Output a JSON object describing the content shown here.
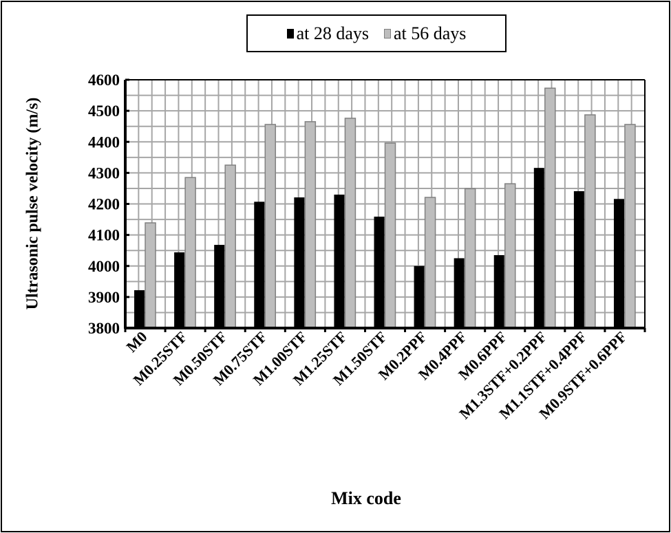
{
  "chart_data": {
    "type": "bar",
    "title": "",
    "xlabel": "Mix code",
    "ylabel": "Ultrasonic pulse velocity (m/s)",
    "ylim": [
      3800,
      4600
    ],
    "yticks": [
      3800,
      3900,
      4000,
      4100,
      4200,
      4300,
      4400,
      4500,
      4600
    ],
    "grid": true,
    "legend_position": "top",
    "categories": [
      "M0",
      "M0.25STF",
      "M0.50STF",
      "M0.75STF",
      "M1.00STF",
      "M1.25STF",
      "M1.50STF",
      "M0.2PPF",
      "M0.4PPF",
      "M0.6PPF",
      "M1.3STF+0.2PPF",
      "M1.1STF+0.4PPF",
      "M0.9STF+0.6PPF"
    ],
    "series": [
      {
        "name": "at 28 days",
        "color": "#000000",
        "values": [
          3922,
          4044,
          4068,
          4207,
          4221,
          4230,
          4159,
          4000,
          4025,
          4035,
          4316,
          4241,
          4216
        ]
      },
      {
        "name": "at 56 days",
        "color": "#bdbdbd",
        "values": [
          4139,
          4285,
          4325,
          4456,
          4465,
          4476,
          4396,
          4221,
          4249,
          4265,
          4573,
          4487,
          4456
        ]
      }
    ]
  },
  "legend": {
    "item1": "at 28 days",
    "item2": "at 56 days"
  },
  "axes": {
    "xlabel": "Mix code",
    "ylabel": "Ultrasonic pulse velocity (m/s)"
  }
}
